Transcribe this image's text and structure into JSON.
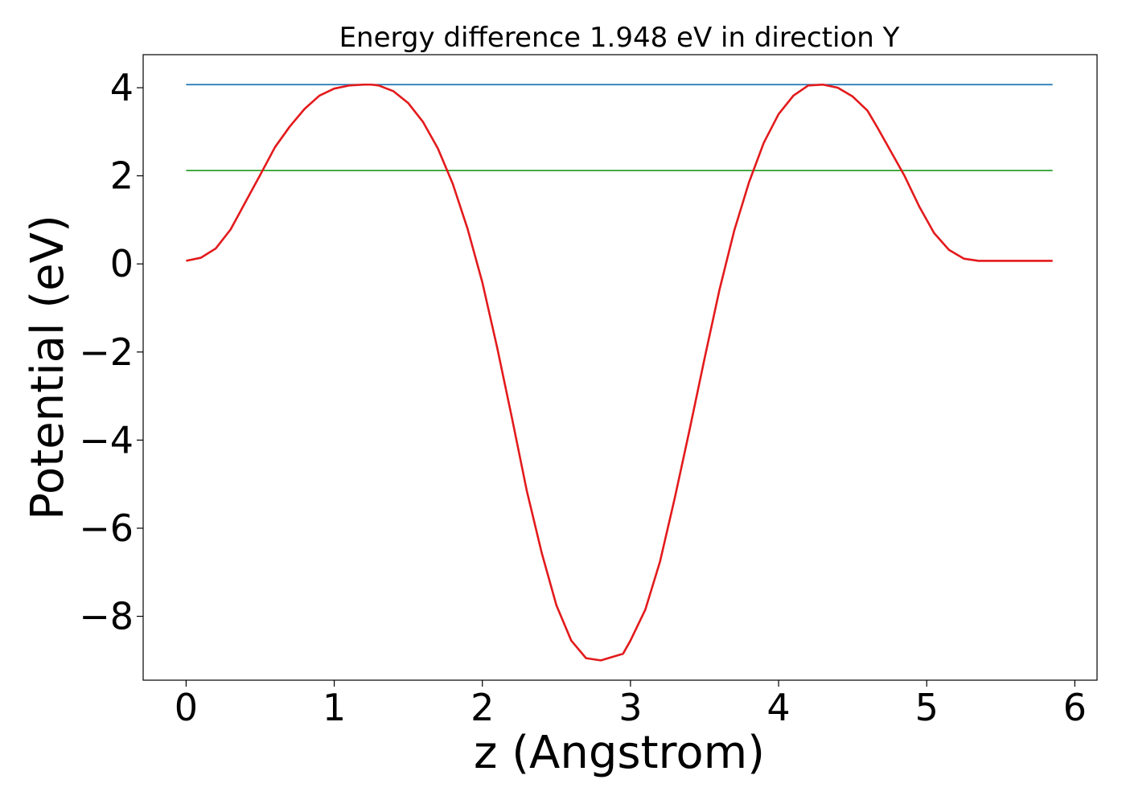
{
  "chart_data": {
    "type": "line",
    "title": "Energy difference 1.948 eV in direction Y",
    "xlabel": "z (Angstrom)",
    "ylabel": "Potential (eV)",
    "xlim": [
      -0.29,
      6.15
    ],
    "ylim": [
      -9.45,
      4.75
    ],
    "xticks": [
      0,
      1,
      2,
      3,
      4,
      5,
      6
    ],
    "xtick_labels": [
      "0",
      "1",
      "2",
      "3",
      "4",
      "5",
      "6"
    ],
    "yticks": [
      4,
      2,
      0,
      -2,
      -4,
      -6,
      -8
    ],
    "ytick_labels": [
      "4",
      "2",
      "0",
      "−2",
      "−4",
      "−6",
      "−8"
    ],
    "grid": false,
    "series": [
      {
        "color": "#1f77b4",
        "x": [
          0,
          5.85
        ],
        "y": [
          4.07,
          4.07
        ]
      },
      {
        "color": "#2ca02c",
        "x": [
          0,
          5.85
        ],
        "y": [
          2.12,
          2.12
        ]
      },
      {
        "color": "#e31a1c",
        "x": [
          0.0,
          0.1,
          0.2,
          0.3,
          0.4,
          0.5,
          0.6,
          0.7,
          0.8,
          0.9,
          1.0,
          1.1,
          1.2,
          1.25,
          1.3,
          1.4,
          1.5,
          1.6,
          1.7,
          1.8,
          1.9,
          2.0,
          2.1,
          2.2,
          2.3,
          2.4,
          2.5,
          2.6,
          2.7,
          2.8,
          2.9,
          2.95,
          3.0,
          3.1,
          3.2,
          3.3,
          3.4,
          3.5,
          3.6,
          3.7,
          3.8,
          3.9,
          4.0,
          4.1,
          4.2,
          4.3,
          4.4,
          4.5,
          4.6,
          4.67,
          4.75,
          4.85,
          4.95,
          5.05,
          5.15,
          5.25,
          5.35,
          5.45,
          5.55,
          5.65,
          5.75,
          5.85
        ],
        "y": [
          0.07,
          0.14,
          0.35,
          0.78,
          1.4,
          2.02,
          2.65,
          3.12,
          3.52,
          3.82,
          3.98,
          4.05,
          4.07,
          4.07,
          4.05,
          3.92,
          3.65,
          3.22,
          2.62,
          1.82,
          0.8,
          -0.42,
          -1.9,
          -3.5,
          -5.15,
          -6.55,
          -7.75,
          -8.55,
          -8.95,
          -9.0,
          -8.9,
          -8.85,
          -8.55,
          -7.85,
          -6.75,
          -5.3,
          -3.75,
          -2.15,
          -0.6,
          0.75,
          1.85,
          2.75,
          3.4,
          3.82,
          4.05,
          4.07,
          4.0,
          3.8,
          3.48,
          3.08,
          2.6,
          2.0,
          1.3,
          0.7,
          0.32,
          0.12,
          0.07,
          0.07,
          0.07,
          0.07,
          0.07,
          0.07
        ]
      }
    ]
  }
}
